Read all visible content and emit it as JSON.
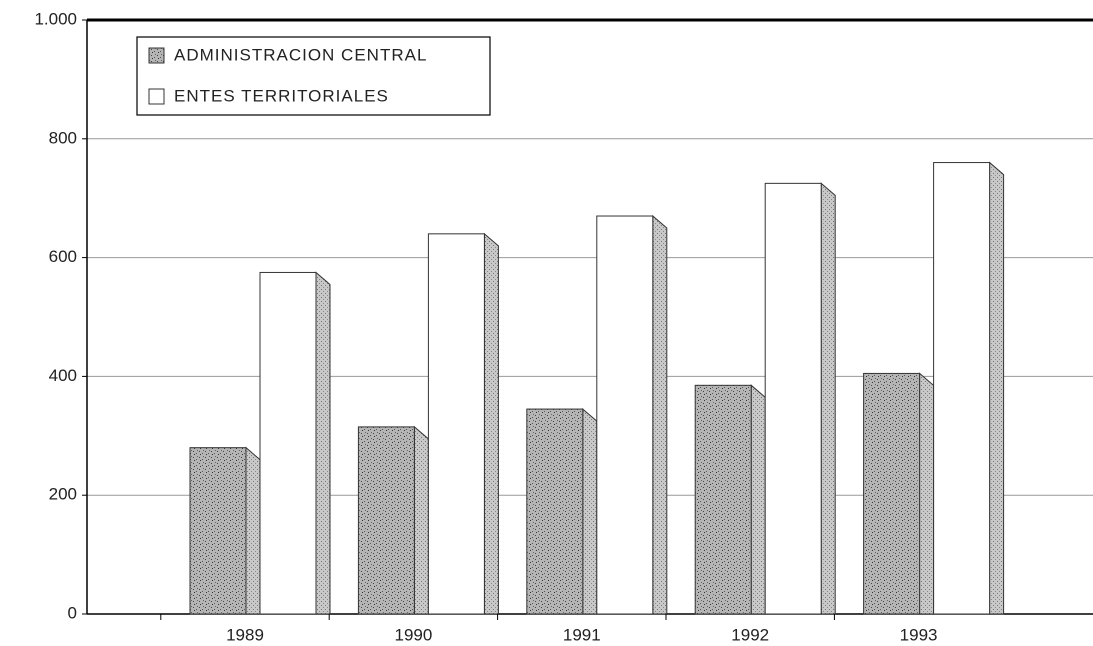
{
  "chart_data": {
    "type": "bar",
    "categories": [
      "1989",
      "1990",
      "1991",
      "1992",
      "1993"
    ],
    "series": [
      {
        "name": "ADMINISTRACION CENTRAL",
        "color": "#9a9a9a",
        "values": [
          280,
          315,
          345,
          385,
          405
        ]
      },
      {
        "name": "ENTES TERRITORIALES",
        "color": "#ffffff",
        "values": [
          575,
          640,
          670,
          725,
          760
        ]
      }
    ],
    "ylim": [
      0,
      1000
    ],
    "yticks": [
      0,
      200,
      400,
      600,
      800,
      {
        "value": 1000,
        "label": "1.000"
      }
    ],
    "grid": true,
    "legend": "upper left"
  }
}
